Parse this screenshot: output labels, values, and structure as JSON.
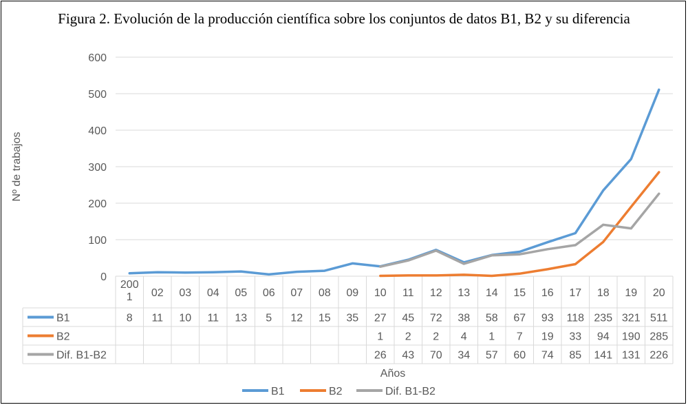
{
  "chart_data": {
    "type": "line",
    "title": "Figura 2. Evolución de la producción científica sobre los conjuntos de datos B1, B2 y su diferencia",
    "xlabel": "Años",
    "ylabel": "Nº de trabajos",
    "ylim": [
      0,
      600
    ],
    "yticks": [
      "0",
      "100",
      "200",
      "300",
      "400",
      "500",
      "600"
    ],
    "categories": [
      "2001",
      "02",
      "03",
      "04",
      "05",
      "06",
      "07",
      "08",
      "09",
      "10",
      "11",
      "12",
      "13",
      "14",
      "15",
      "16",
      "17",
      "18",
      "19",
      "20"
    ],
    "grid": "horizontal",
    "legend_position": "bottom",
    "data_table": true,
    "series": [
      {
        "name": "B1",
        "color": "#5B9BD5",
        "values": [
          8,
          11,
          10,
          11,
          13,
          5,
          12,
          15,
          35,
          27,
          45,
          72,
          38,
          58,
          67,
          93,
          118,
          235,
          321,
          511
        ]
      },
      {
        "name": "B2",
        "color": "#ED7D31",
        "values": [
          null,
          null,
          null,
          null,
          null,
          null,
          null,
          null,
          null,
          1,
          2,
          2,
          4,
          1,
          7,
          19,
          33,
          94,
          190,
          285
        ]
      },
      {
        "name": "Dif. B1-B2",
        "color": "#A5A5A5",
        "values": [
          null,
          null,
          null,
          null,
          null,
          null,
          null,
          null,
          null,
          26,
          43,
          70,
          34,
          57,
          60,
          74,
          85,
          141,
          131,
          226
        ]
      }
    ]
  }
}
